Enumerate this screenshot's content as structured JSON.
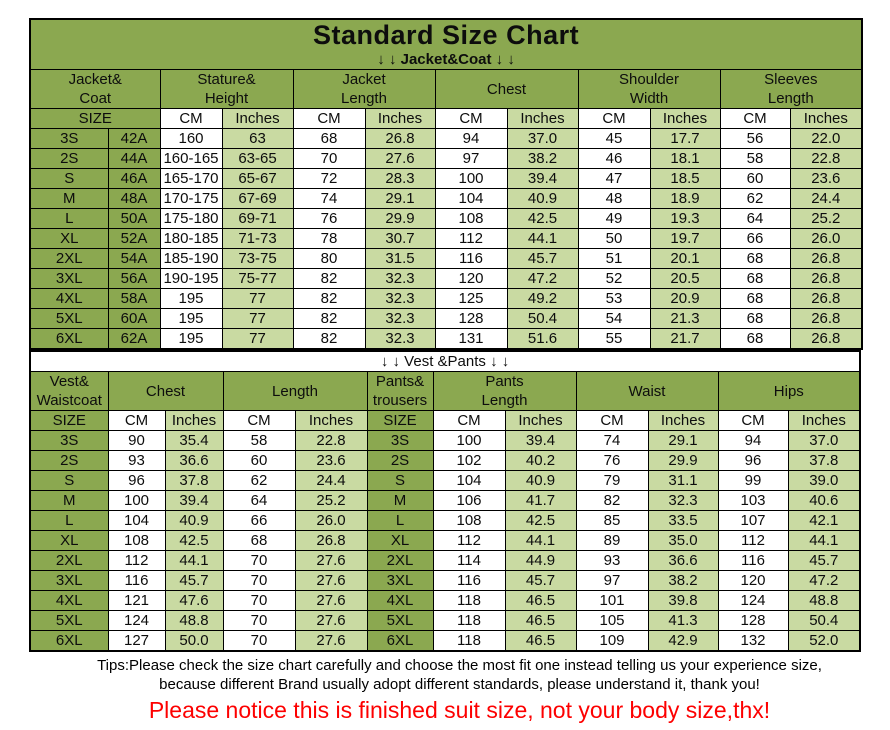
{
  "title": "Standard Size Chart",
  "colors": {
    "header_green": "#8ba850",
    "light_green": "#c9daa2",
    "notice_red": "#fd0000",
    "border": "#000000"
  },
  "jacket_table": {
    "subtitle": "↓ ↓  Jacket&Coat ↓ ↓",
    "column_groups": [
      {
        "lines": [
          "Jacket&",
          "Coat"
        ],
        "span": 2
      },
      {
        "lines": [
          "Stature&",
          "Height"
        ],
        "span": 2
      },
      {
        "lines": [
          "Jacket",
          "Length"
        ],
        "span": 2
      },
      {
        "lines": [
          "Chest"
        ],
        "span": 2
      },
      {
        "lines": [
          "Shoulder",
          "Width"
        ],
        "span": 2
      },
      {
        "lines": [
          "Sleeves",
          "Length"
        ],
        "span": 2
      }
    ],
    "unit_row": [
      {
        "label": "SIZE",
        "span": 2,
        "type": "size"
      },
      {
        "label": "CM",
        "type": "cm"
      },
      {
        "label": "Inches",
        "type": "in"
      },
      {
        "label": "CM",
        "type": "cm"
      },
      {
        "label": "Inches",
        "type": "in"
      },
      {
        "label": "CM",
        "type": "cm"
      },
      {
        "label": "Inches",
        "type": "in"
      },
      {
        "label": "CM",
        "type": "cm"
      },
      {
        "label": "Inches",
        "type": "in"
      },
      {
        "label": "CM",
        "type": "cm"
      },
      {
        "label": "Inches",
        "type": "in"
      }
    ],
    "col_types": [
      "size",
      "size",
      "cm",
      "in",
      "cm",
      "in",
      "cm",
      "in",
      "cm",
      "in",
      "cm",
      "in"
    ],
    "rows": [
      [
        "3S",
        "42A",
        "160",
        "63",
        "68",
        "26.8",
        "94",
        "37.0",
        "45",
        "17.7",
        "56",
        "22.0"
      ],
      [
        "2S",
        "44A",
        "160-165",
        "63-65",
        "70",
        "27.6",
        "97",
        "38.2",
        "46",
        "18.1",
        "58",
        "22.8"
      ],
      [
        "S",
        "46A",
        "165-170",
        "65-67",
        "72",
        "28.3",
        "100",
        "39.4",
        "47",
        "18.5",
        "60",
        "23.6"
      ],
      [
        "M",
        "48A",
        "170-175",
        "67-69",
        "74",
        "29.1",
        "104",
        "40.9",
        "48",
        "18.9",
        "62",
        "24.4"
      ],
      [
        "L",
        "50A",
        "175-180",
        "69-71",
        "76",
        "29.9",
        "108",
        "42.5",
        "49",
        "19.3",
        "64",
        "25.2"
      ],
      [
        "XL",
        "52A",
        "180-185",
        "71-73",
        "78",
        "30.7",
        "112",
        "44.1",
        "50",
        "19.7",
        "66",
        "26.0"
      ],
      [
        "2XL",
        "54A",
        "185-190",
        "73-75",
        "80",
        "31.5",
        "116",
        "45.7",
        "51",
        "20.1",
        "68",
        "26.8"
      ],
      [
        "3XL",
        "56A",
        "190-195",
        "75-77",
        "82",
        "32.3",
        "120",
        "47.2",
        "52",
        "20.5",
        "68",
        "26.8"
      ],
      [
        "4XL",
        "58A",
        "195",
        "77",
        "82",
        "32.3",
        "125",
        "49.2",
        "53",
        "20.9",
        "68",
        "26.8"
      ],
      [
        "5XL",
        "60A",
        "195",
        "77",
        "82",
        "32.3",
        "128",
        "50.4",
        "54",
        "21.3",
        "68",
        "26.8"
      ],
      [
        "6XL",
        "62A",
        "195",
        "77",
        "82",
        "32.3",
        "131",
        "51.6",
        "55",
        "21.7",
        "68",
        "26.8"
      ]
    ]
  },
  "vest_pants_table": {
    "heading": "↓ ↓  Vest &Pants ↓ ↓",
    "column_groups": [
      {
        "lines": [
          "Vest&",
          "Waistcoat"
        ],
        "span": 1
      },
      {
        "lines": [
          "Chest"
        ],
        "span": 2
      },
      {
        "lines": [
          "Length"
        ],
        "span": 2
      },
      {
        "lines": [
          "Pants&",
          "trousers"
        ],
        "span": 1
      },
      {
        "lines": [
          "Pants",
          "Length"
        ],
        "span": 2
      },
      {
        "lines": [
          "Waist"
        ],
        "span": 2
      },
      {
        "lines": [
          "Hips"
        ],
        "span": 2
      }
    ],
    "unit_row": [
      {
        "label": "SIZE",
        "type": "size"
      },
      {
        "label": "CM",
        "type": "cm"
      },
      {
        "label": "Inches",
        "type": "in"
      },
      {
        "label": "CM",
        "type": "cm"
      },
      {
        "label": "Inches",
        "type": "in"
      },
      {
        "label": "SIZE",
        "type": "size"
      },
      {
        "label": "CM",
        "type": "cm"
      },
      {
        "label": "Inches",
        "type": "in"
      },
      {
        "label": "CM",
        "type": "cm"
      },
      {
        "label": "Inches",
        "type": "in"
      },
      {
        "label": "CM",
        "type": "cm"
      },
      {
        "label": "Inches",
        "type": "in"
      }
    ],
    "col_types": [
      "size",
      "cm",
      "in",
      "cm",
      "in",
      "size",
      "cm",
      "in",
      "cm",
      "in",
      "cm",
      "in"
    ],
    "rows": [
      [
        "3S",
        "90",
        "35.4",
        "58",
        "22.8",
        "3S",
        "100",
        "39.4",
        "74",
        "29.1",
        "94",
        "37.0"
      ],
      [
        "2S",
        "93",
        "36.6",
        "60",
        "23.6",
        "2S",
        "102",
        "40.2",
        "76",
        "29.9",
        "96",
        "37.8"
      ],
      [
        "S",
        "96",
        "37.8",
        "62",
        "24.4",
        "S",
        "104",
        "40.9",
        "79",
        "31.1",
        "99",
        "39.0"
      ],
      [
        "M",
        "100",
        "39.4",
        "64",
        "25.2",
        "M",
        "106",
        "41.7",
        "82",
        "32.3",
        "103",
        "40.6"
      ],
      [
        "L",
        "104",
        "40.9",
        "66",
        "26.0",
        "L",
        "108",
        "42.5",
        "85",
        "33.5",
        "107",
        "42.1"
      ],
      [
        "XL",
        "108",
        "42.5",
        "68",
        "26.8",
        "XL",
        "112",
        "44.1",
        "89",
        "35.0",
        "112",
        "44.1"
      ],
      [
        "2XL",
        "112",
        "44.1",
        "70",
        "27.6",
        "2XL",
        "114",
        "44.9",
        "93",
        "36.6",
        "116",
        "45.7"
      ],
      [
        "3XL",
        "116",
        "45.7",
        "70",
        "27.6",
        "3XL",
        "116",
        "45.7",
        "97",
        "38.2",
        "120",
        "47.2"
      ],
      [
        "4XL",
        "121",
        "47.6",
        "70",
        "27.6",
        "4XL",
        "118",
        "46.5",
        "101",
        "39.8",
        "124",
        "48.8"
      ],
      [
        "5XL",
        "124",
        "48.8",
        "70",
        "27.6",
        "5XL",
        "118",
        "46.5",
        "105",
        "41.3",
        "128",
        "50.4"
      ],
      [
        "6XL",
        "127",
        "50.0",
        "70",
        "27.6",
        "6XL",
        "118",
        "46.5",
        "109",
        "42.9",
        "132",
        "52.0"
      ]
    ]
  },
  "footer": {
    "tips_line1": "Tips:Please check the size chart carefully and choose the most fit one instead telling us your experience size,",
    "tips_line2": "because different Brand usually adopt different standards, please understand it, thank you!",
    "notice": "Please notice this is finished suit size, not your body size,thx!"
  }
}
